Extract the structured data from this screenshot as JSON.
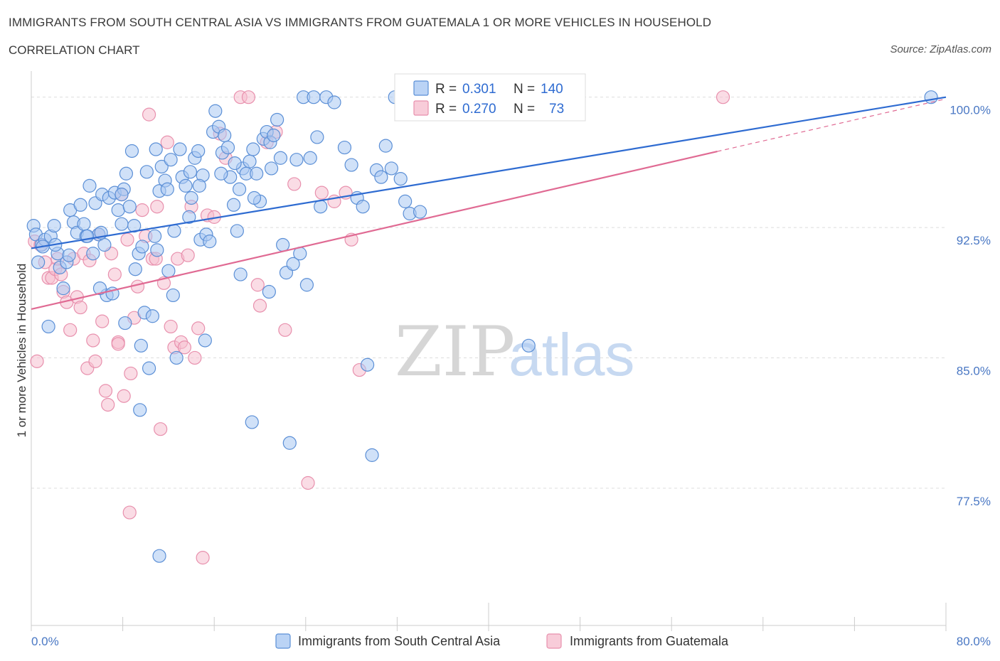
{
  "header": {
    "title": "IMMIGRANTS FROM SOUTH CENTRAL ASIA VS IMMIGRANTS FROM GUATEMALA 1 OR MORE VEHICLES IN HOUSEHOLD",
    "subtitle": "CORRELATION CHART",
    "source": "Source: ZipAtlas.com"
  },
  "watermark": {
    "zip": "ZIP",
    "atlas": "atlas"
  },
  "colors": {
    "blue_fill": "#a9c8f2",
    "blue_stroke": "#5b8fd6",
    "blue_line": "#2e6bd1",
    "pink_fill": "#f6bfd0",
    "pink_stroke": "#e890ad",
    "pink_line": "#e06a93",
    "tick_label": "#4a78c4",
    "grid": "#dddddd"
  },
  "legend": {
    "r_label": "R =",
    "n_label": "N =",
    "rows": [
      {
        "series": "blue",
        "r": "0.301",
        "n": "140"
      },
      {
        "series": "pink",
        "r": "0.270",
        "n": "73"
      }
    ]
  },
  "chart_data": {
    "type": "scatter",
    "title": "IMMIGRANTS FROM SOUTH CENTRAL ASIA VS IMMIGRANTS FROM GUATEMALA 1 OR MORE VEHICLES IN HOUSEHOLD",
    "xlabel": "",
    "ylabel": "1 or more Vehicles in Household",
    "xlim": [
      0,
      80
    ],
    "ylim": [
      69.6,
      101.5
    ],
    "x_tick_labels": [
      {
        "value": 0,
        "label": "0.0%"
      },
      {
        "value": 80,
        "label": "80.0%"
      }
    ],
    "y_tick_labels": [
      {
        "value": 100,
        "label": "100.0%"
      },
      {
        "value": 92.5,
        "label": "92.5%"
      },
      {
        "value": 85,
        "label": "85.0%"
      },
      {
        "value": 77.5,
        "label": "77.5%"
      }
    ],
    "grid": true,
    "legend_position": "top-center",
    "series": [
      {
        "name": "Immigrants from South Central Asia",
        "color": "#a9c8f2",
        "r": 0.301,
        "n": 140,
        "trend": {
          "x": [
            0,
            80
          ],
          "y": [
            91.3,
            100.0
          ],
          "dashed_from": null
        },
        "points": [
          [
            0.2,
            92.6
          ],
          [
            0.4,
            92.1
          ],
          [
            0.6,
            90.5
          ],
          [
            0.9,
            91.5
          ],
          [
            1.2,
            91.8
          ],
          [
            1.5,
            86.8
          ],
          [
            1.7,
            92.0
          ],
          [
            2.0,
            92.6
          ],
          [
            2.3,
            91.0
          ],
          [
            2.5,
            90.2
          ],
          [
            2.8,
            89.0
          ],
          [
            3.1,
            90.5
          ],
          [
            3.4,
            93.5
          ],
          [
            3.7,
            92.8
          ],
          [
            4.0,
            92.2
          ],
          [
            4.3,
            93.8
          ],
          [
            4.6,
            92.7
          ],
          [
            4.8,
            92.0
          ],
          [
            5.1,
            94.9
          ],
          [
            5.4,
            91.0
          ],
          [
            5.6,
            93.9
          ],
          [
            5.9,
            92.1
          ],
          [
            6.2,
            94.4
          ],
          [
            6.4,
            91.5
          ],
          [
            6.6,
            88.6
          ],
          [
            6.8,
            94.2
          ],
          [
            7.1,
            88.7
          ],
          [
            7.3,
            94.5
          ],
          [
            7.6,
            93.5
          ],
          [
            7.9,
            92.7
          ],
          [
            8.1,
            94.7
          ],
          [
            8.3,
            95.6
          ],
          [
            8.6,
            93.7
          ],
          [
            8.8,
            96.9
          ],
          [
            9.1,
            90.1
          ],
          [
            9.4,
            91.0
          ],
          [
            9.6,
            85.7
          ],
          [
            9.9,
            87.6
          ],
          [
            10.1,
            95.7
          ],
          [
            10.3,
            84.4
          ],
          [
            10.6,
            87.4
          ],
          [
            10.9,
            97.0
          ],
          [
            11.2,
            94.6
          ],
          [
            11.4,
            96.0
          ],
          [
            11.7,
            95.2
          ],
          [
            11.9,
            94.7
          ],
          [
            12.2,
            96.4
          ],
          [
            12.5,
            92.3
          ],
          [
            12.7,
            85.0
          ],
          [
            13.0,
            97.0
          ],
          [
            13.2,
            95.4
          ],
          [
            13.5,
            94.9
          ],
          [
            13.8,
            93.1
          ],
          [
            14.0,
            94.2
          ],
          [
            14.3,
            96.5
          ],
          [
            14.6,
            96.9
          ],
          [
            14.8,
            91.8
          ],
          [
            15.0,
            95.5
          ],
          [
            15.3,
            92.1
          ],
          [
            15.6,
            91.7
          ],
          [
            15.9,
            98.0
          ],
          [
            16.1,
            99.2
          ],
          [
            16.4,
            98.3
          ],
          [
            16.7,
            96.8
          ],
          [
            16.9,
            97.8
          ],
          [
            17.2,
            97.1
          ],
          [
            17.4,
            95.4
          ],
          [
            17.7,
            93.8
          ],
          [
            18.0,
            92.3
          ],
          [
            18.2,
            94.7
          ],
          [
            18.5,
            95.9
          ],
          [
            18.8,
            95.6
          ],
          [
            19.1,
            96.3
          ],
          [
            19.4,
            97.0
          ],
          [
            19.7,
            95.6
          ],
          [
            20.0,
            94.0
          ],
          [
            20.3,
            97.6
          ],
          [
            20.6,
            98.0
          ],
          [
            20.9,
            97.4
          ],
          [
            21.2,
            97.8
          ],
          [
            21.5,
            98.7
          ],
          [
            21.8,
            96.5
          ],
          [
            22.0,
            91.5
          ],
          [
            22.3,
            89.9
          ],
          [
            22.6,
            80.1
          ],
          [
            22.9,
            90.4
          ],
          [
            23.2,
            96.4
          ],
          [
            23.5,
            91.0
          ],
          [
            23.8,
            100.0
          ],
          [
            24.1,
            89.2
          ],
          [
            24.4,
            96.5
          ],
          [
            24.7,
            100.0
          ],
          [
            25.0,
            97.7
          ],
          [
            25.3,
            93.7
          ],
          [
            25.8,
            100.0
          ],
          [
            26.5,
            99.7
          ],
          [
            27.4,
            97.1
          ],
          [
            28.0,
            96.1
          ],
          [
            28.5,
            94.2
          ],
          [
            29.0,
            93.7
          ],
          [
            29.4,
            84.6
          ],
          [
            29.8,
            79.4
          ],
          [
            30.2,
            95.8
          ],
          [
            30.6,
            95.4
          ],
          [
            31.0,
            97.2
          ],
          [
            31.5,
            95.9
          ],
          [
            31.8,
            100.0
          ],
          [
            32.3,
            95.3
          ],
          [
            32.7,
            94.0
          ],
          [
            33.1,
            93.3
          ],
          [
            33.5,
            100.0
          ],
          [
            34.0,
            93.4
          ],
          [
            12.0,
            90.0
          ],
          [
            11.0,
            91.2
          ],
          [
            9.0,
            92.6
          ],
          [
            7.9,
            94.4
          ],
          [
            6.1,
            92.2
          ],
          [
            4.9,
            92.0
          ],
          [
            3.3,
            90.9
          ],
          [
            2.1,
            91.5
          ],
          [
            1.0,
            91.4
          ],
          [
            15.2,
            86.0
          ],
          [
            8.2,
            87.0
          ],
          [
            13.9,
            95.7
          ],
          [
            17.8,
            96.2
          ],
          [
            20.8,
            88.8
          ],
          [
            18.3,
            89.8
          ],
          [
            12.4,
            88.6
          ],
          [
            10.8,
            92.0
          ],
          [
            9.7,
            91.4
          ],
          [
            14.7,
            94.9
          ],
          [
            16.6,
            95.6
          ],
          [
            19.5,
            94.2
          ],
          [
            21.0,
            95.9
          ],
          [
            6.0,
            89.0
          ],
          [
            43.5,
            85.7
          ],
          [
            11.2,
            73.6
          ],
          [
            9.5,
            82.0
          ],
          [
            19.3,
            81.3
          ],
          [
            78.7,
            100.0
          ]
        ]
      },
      {
        "name": "Immigrants from Guatemala",
        "color": "#f6bfd0",
        "r": 0.27,
        "n": 73,
        "trend": {
          "x": [
            0,
            80
          ],
          "y": [
            87.8,
            99.9
          ],
          "dashed_from": 60
        },
        "points": [
          [
            0.3,
            91.7
          ],
          [
            0.5,
            84.8
          ],
          [
            0.8,
            91.5
          ],
          [
            1.2,
            90.5
          ],
          [
            1.5,
            89.6
          ],
          [
            1.8,
            89.6
          ],
          [
            2.1,
            90.1
          ],
          [
            2.3,
            90.7
          ],
          [
            2.6,
            89.8
          ],
          [
            2.8,
            88.8
          ],
          [
            3.1,
            88.2
          ],
          [
            3.4,
            86.6
          ],
          [
            3.7,
            90.7
          ],
          [
            4.0,
            88.5
          ],
          [
            4.3,
            87.9
          ],
          [
            4.6,
            91.0
          ],
          [
            4.9,
            84.4
          ],
          [
            5.1,
            90.6
          ],
          [
            5.4,
            86.0
          ],
          [
            5.6,
            84.8
          ],
          [
            5.9,
            92.1
          ],
          [
            6.2,
            87.1
          ],
          [
            6.5,
            83.1
          ],
          [
            6.7,
            82.3
          ],
          [
            7.0,
            91.0
          ],
          [
            7.3,
            89.8
          ],
          [
            7.6,
            85.9
          ],
          [
            7.9,
            94.4
          ],
          [
            8.1,
            82.8
          ],
          [
            8.4,
            91.8
          ],
          [
            8.7,
            84.1
          ],
          [
            9.0,
            87.3
          ],
          [
            9.3,
            89.1
          ],
          [
            9.7,
            93.5
          ],
          [
            10.0,
            92.0
          ],
          [
            10.3,
            99.0
          ],
          [
            10.6,
            90.7
          ],
          [
            11.0,
            93.7
          ],
          [
            11.3,
            80.9
          ],
          [
            11.6,
            89.3
          ],
          [
            11.9,
            97.4
          ],
          [
            12.2,
            86.8
          ],
          [
            12.5,
            85.6
          ],
          [
            12.8,
            90.7
          ],
          [
            13.1,
            85.9
          ],
          [
            13.4,
            85.6
          ],
          [
            13.7,
            90.9
          ],
          [
            14.0,
            93.7
          ],
          [
            14.3,
            85.0
          ],
          [
            14.6,
            86.7
          ],
          [
            15.0,
            73.5
          ],
          [
            15.4,
            93.2
          ],
          [
            16.0,
            93.1
          ],
          [
            16.5,
            97.9
          ],
          [
            17.0,
            96.5
          ],
          [
            18.3,
            100.0
          ],
          [
            19.0,
            100.0
          ],
          [
            19.8,
            89.2
          ],
          [
            20.6,
            97.4
          ],
          [
            21.4,
            98.0
          ],
          [
            22.2,
            86.6
          ],
          [
            23.0,
            95.0
          ],
          [
            24.2,
            77.8
          ],
          [
            25.4,
            94.5
          ],
          [
            26.5,
            94.0
          ],
          [
            27.5,
            94.5
          ],
          [
            28.0,
            91.8
          ],
          [
            28.7,
            84.3
          ],
          [
            20.0,
            88.0
          ],
          [
            8.6,
            76.1
          ],
          [
            7.6,
            85.8
          ],
          [
            10.9,
            90.7
          ],
          [
            60.5,
            100.0
          ]
        ]
      }
    ]
  },
  "bottom_legend": {
    "items": [
      {
        "label": "Immigrants from South Central Asia",
        "series": "blue"
      },
      {
        "label": "Immigrants from Guatemala",
        "series": "pink"
      }
    ]
  }
}
